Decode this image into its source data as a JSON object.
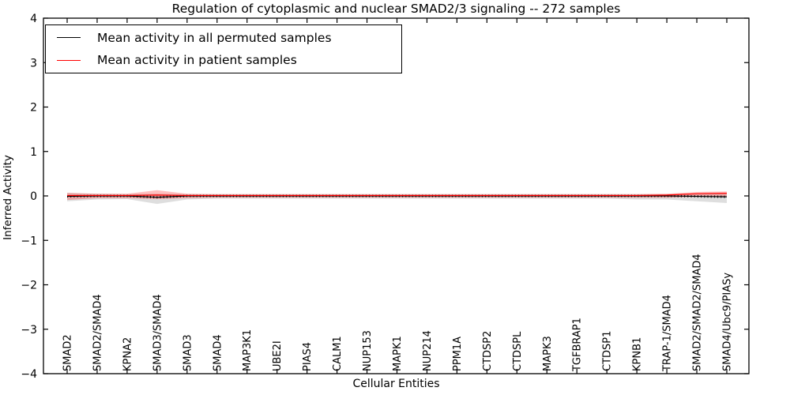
{
  "chart": {
    "title": "Regulation of cytoplasmic and nuclear SMAD2/3 signaling -- 272 samples",
    "xlabel": "Cellular Entities",
    "ylabel": "Inferred Activity"
  },
  "legend": {
    "entries": [
      {
        "label": "Mean activity in all permuted samples",
        "color": "#000000"
      },
      {
        "label": "Mean activity in patient samples",
        "color": "#ff0000"
      }
    ]
  },
  "chart_data": {
    "type": "line",
    "title": "Regulation of cytoplasmic and nuclear SMAD2/3 signaling -- 272 samples",
    "xlabel": "Cellular Entities",
    "ylabel": "Inferred Activity",
    "ylim": [
      -4,
      4
    ],
    "yticks": [
      -4,
      -3,
      -2,
      -1,
      0,
      1,
      2,
      3,
      4
    ],
    "ytick_labels": [
      "−4",
      "−3",
      "−2",
      "−1",
      "0",
      "1",
      "2",
      "3",
      "4"
    ],
    "grid": false,
    "legend_position": "upper left",
    "categories": [
      "SMAD2",
      "SMAD2/SMAD4",
      "KPNA2",
      "SMAD3/SMAD4",
      "SMAD3",
      "SMAD4",
      "MAP3K1",
      "UBE2I",
      "PIAS4",
      "CALM1",
      "NUP153",
      "MAPK1",
      "NUP214",
      "PPM1A",
      "CTDSP2",
      "CTDSPL",
      "MAPK3",
      "TGFBRAP1",
      "CTDSP1",
      "KPNB1",
      "TRAP-1/SMAD4",
      "SMAD2/SMAD2/SMAD4",
      "SMAD4/Ubc9/PIASy"
    ],
    "series": [
      {
        "name": "Mean activity in all permuted samples",
        "color": "#000000",
        "band_color": "#999999",
        "values": [
          -0.01,
          0.0,
          0.0,
          -0.03,
          0.0,
          0.0,
          0.0,
          0.0,
          0.0,
          0.0,
          0.0,
          0.0,
          0.0,
          0.0,
          0.0,
          0.0,
          0.0,
          0.0,
          0.0,
          0.0,
          0.0,
          -0.01,
          -0.02
        ],
        "band_upper": [
          0.07,
          0.05,
          0.04,
          0.05,
          0.04,
          0.04,
          0.04,
          0.04,
          0.04,
          0.04,
          0.04,
          0.04,
          0.04,
          0.04,
          0.04,
          0.04,
          0.04,
          0.04,
          0.04,
          0.04,
          0.04,
          0.05,
          0.05
        ],
        "band_lower": [
          -0.12,
          -0.08,
          -0.07,
          -0.18,
          -0.08,
          -0.06,
          -0.06,
          -0.06,
          -0.06,
          -0.06,
          -0.06,
          -0.06,
          -0.06,
          -0.06,
          -0.06,
          -0.06,
          -0.06,
          -0.06,
          -0.06,
          -0.08,
          -0.08,
          -0.12,
          -0.16
        ]
      },
      {
        "name": "Mean activity in patient samples",
        "color": "#ff0000",
        "band_color": "#ff0000",
        "values": [
          0.01,
          0.01,
          0.01,
          0.02,
          0.01,
          0.01,
          0.01,
          0.01,
          0.01,
          0.01,
          0.01,
          0.01,
          0.01,
          0.01,
          0.01,
          0.01,
          0.01,
          0.01,
          0.01,
          0.01,
          0.02,
          0.05,
          0.06
        ],
        "band_upper": [
          0.07,
          0.05,
          0.05,
          0.13,
          0.05,
          0.04,
          0.04,
          0.04,
          0.04,
          0.04,
          0.04,
          0.04,
          0.04,
          0.04,
          0.04,
          0.04,
          0.04,
          0.04,
          0.04,
          0.04,
          0.05,
          0.09,
          0.1
        ],
        "band_lower": [
          -0.09,
          -0.05,
          -0.05,
          -0.07,
          -0.05,
          -0.04,
          -0.04,
          -0.04,
          -0.04,
          -0.04,
          -0.04,
          -0.04,
          -0.04,
          -0.04,
          -0.04,
          -0.04,
          -0.04,
          -0.04,
          -0.04,
          -0.04,
          -0.04,
          -0.02,
          -0.02
        ]
      }
    ]
  }
}
